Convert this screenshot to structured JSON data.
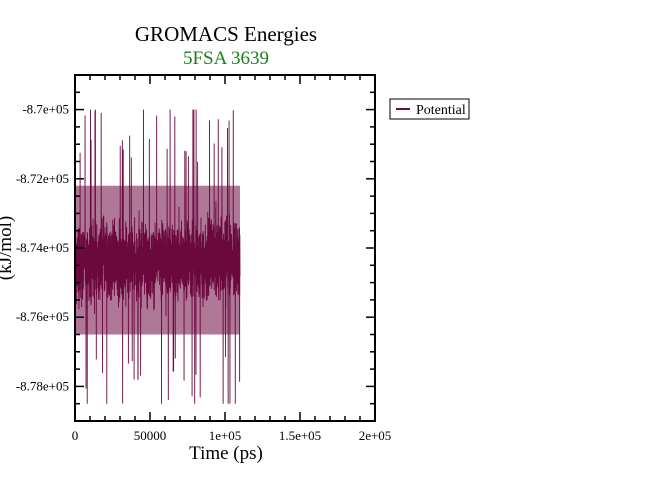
{
  "chart_data": {
    "type": "line",
    "title": "GROMACS Energies",
    "subtitle": "5FSA 3639",
    "xlabel": "Time (ps)",
    "ylabel": "(kJ/mol)",
    "xlim": [
      0,
      200000
    ],
    "ylim": [
      -879000,
      -869000
    ],
    "x_ticks": [
      {
        "value": 0,
        "label": "0"
      },
      {
        "value": 50000,
        "label": "50000"
      },
      {
        "value": 100000,
        "label": "1e+05"
      },
      {
        "value": 150000,
        "label": "1.5e+05"
      },
      {
        "value": 200000,
        "label": "2e+05"
      }
    ],
    "y_ticks": [
      {
        "value": -870000,
        "label": "-8.7e+05"
      },
      {
        "value": -872000,
        "label": "-8.72e+05"
      },
      {
        "value": -874000,
        "label": "-8.74e+05"
      },
      {
        "value": -876000,
        "label": "-8.76e+05"
      },
      {
        "value": -878000,
        "label": "-8.78e+05"
      }
    ],
    "grid": false,
    "legend_position": "right",
    "series": [
      {
        "name": "Potential",
        "color": "#6b0a3f",
        "x_start": 0,
        "x_end": 110000,
        "mean": -874800,
        "band_low": -876500,
        "band_high": -872200,
        "min": -878500,
        "max": -870000
      }
    ],
    "colors": {
      "title": "#000000",
      "subtitle": "#1a7f1a",
      "series": "#6b0a3f"
    }
  }
}
